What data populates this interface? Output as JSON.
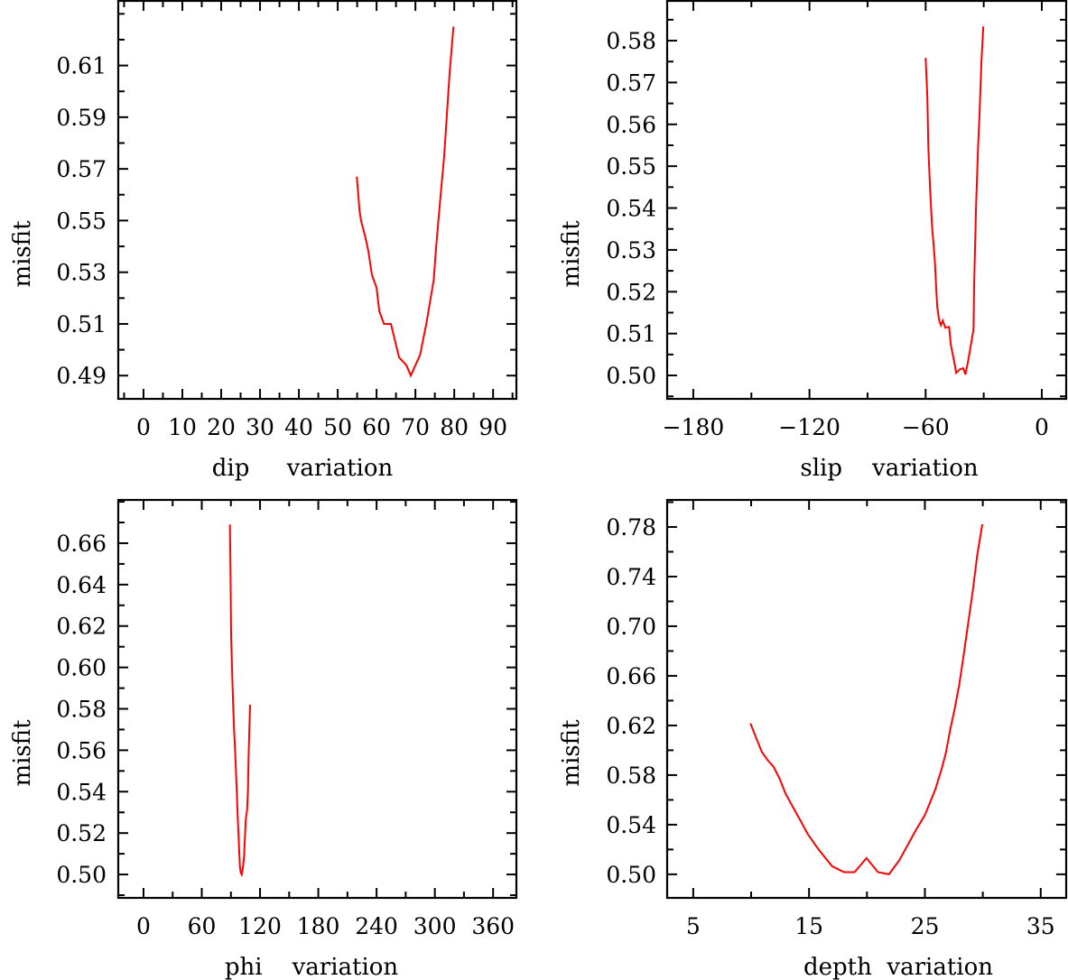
{
  "chart_data": [
    {
      "type": "line",
      "title": "",
      "xlabel": "dip     variation",
      "ylabel": "misfit",
      "xlim": [
        -6.5,
        96
      ],
      "ylim": [
        0.481,
        0.635
      ],
      "xticks": [
        0,
        10,
        20,
        30,
        40,
        50,
        60,
        70,
        80,
        90
      ],
      "xtick_labels": [
        "0",
        "10",
        "20",
        "30",
        "40",
        "50",
        "60",
        "70",
        "80",
        "90"
      ],
      "xminor_step": 5,
      "yticks": [
        0.49,
        0.51,
        0.53,
        0.55,
        0.57,
        0.59,
        0.61
      ],
      "ytick_labels": [
        "0.49",
        "0.51",
        "0.53",
        "0.55",
        "0.57",
        "0.59",
        "0.61"
      ],
      "yminor_step": 0.01,
      "grid": false,
      "series": [
        {
          "name": "misfit",
          "color": "#ff0000",
          "x": [
            54.9,
            55.6,
            56.0,
            57.2,
            57.9,
            58.8,
            60.0,
            60.7,
            61.9,
            63.7,
            65.8,
            67.7,
            68.8,
            70.0,
            71.2,
            72.8,
            74.7,
            75.3,
            76.5,
            77.4,
            78.1,
            78.8,
            79.8
          ],
          "y": [
            0.567,
            0.554,
            0.55,
            0.543,
            0.538,
            0.529,
            0.524,
            0.515,
            0.51,
            0.51,
            0.497,
            0.494,
            0.49,
            0.494,
            0.498,
            0.51,
            0.527,
            0.539,
            0.56,
            0.575,
            0.591,
            0.607,
            0.625
          ]
        }
      ]
    },
    {
      "type": "line",
      "title": "",
      "xlabel": "slip    variation",
      "ylabel": "misfit",
      "xlim": [
        -193.5,
        12.6
      ],
      "ylim": [
        0.4944,
        0.5895
      ],
      "xticks": [
        -180,
        -120,
        -60,
        0
      ],
      "xtick_labels": [
        "−180",
        "−120",
        "−60",
        "0"
      ],
      "xminor_step": 30,
      "yticks": [
        0.5,
        0.51,
        0.52,
        0.53,
        0.54,
        0.55,
        0.56,
        0.57,
        0.58
      ],
      "ytick_labels": [
        "0.50",
        "0.51",
        "0.52",
        "0.53",
        "0.54",
        "0.55",
        "0.56",
        "0.57",
        "0.58"
      ],
      "yminor_step": 0.005,
      "grid": false,
      "series": [
        {
          "name": "misfit",
          "color": "#ff0000",
          "x": [
            -60.0,
            -59.1,
            -58.6,
            -57.7,
            -56.7,
            -55.3,
            -54.4,
            -54.0,
            -53.0,
            -52.1,
            -51.2,
            -49.8,
            -47.9,
            -47.0,
            -45.6,
            -44.2,
            -42.3,
            -40.5,
            -39.5,
            -38.1,
            -36.7,
            -35.3,
            -34.9,
            -34.0,
            -33.0,
            -32.1,
            -31.2,
            -30.2
          ],
          "y": [
            0.5759,
            0.5665,
            0.5544,
            0.5447,
            0.5357,
            0.5277,
            0.5196,
            0.5163,
            0.5131,
            0.512,
            0.5131,
            0.5114,
            0.5116,
            0.5073,
            0.5041,
            0.5006,
            0.5015,
            0.5017,
            0.5002,
            0.5034,
            0.5071,
            0.511,
            0.5222,
            0.54,
            0.5535,
            0.563,
            0.575,
            0.5834
          ]
        }
      ]
    },
    {
      "type": "line",
      "title": "",
      "xlabel": "phi    variation",
      "ylabel": "misfit",
      "xlim": [
        -26,
        384
      ],
      "ylim": [
        0.4887,
        0.6809
      ],
      "xticks": [
        0,
        60,
        120,
        180,
        240,
        300,
        360
      ],
      "xtick_labels": [
        "0",
        "60",
        "120",
        "180",
        "240",
        "300",
        "360"
      ],
      "xminor_step": 30,
      "yticks": [
        0.5,
        0.52,
        0.54,
        0.56,
        0.58,
        0.6,
        0.62,
        0.64,
        0.66
      ],
      "ytick_labels": [
        "0.50",
        "0.52",
        "0.54",
        "0.56",
        "0.58",
        "0.60",
        "0.62",
        "0.64",
        "0.66"
      ],
      "yminor_step": 0.01,
      "grid": false,
      "series": [
        {
          "name": "misfit",
          "color": "#ff0000",
          "x": [
            89.0,
            89.6,
            90.2,
            91.5,
            92.4,
            93.3,
            94.6,
            95.8,
            96.7,
            97.7,
            98.6,
            99.2,
            100.1,
            101.1,
            102.3,
            103.6,
            104.5,
            105.4,
            106.7,
            107.6,
            108.2,
            109.1,
            109.8
          ],
          "y": [
            0.669,
            0.648,
            0.615,
            0.594,
            0.58,
            0.57,
            0.557,
            0.543,
            0.531,
            0.52,
            0.511,
            0.504,
            0.501,
            0.5,
            0.503,
            0.509,
            0.519,
            0.527,
            0.531,
            0.541,
            0.556,
            0.572,
            0.582
          ]
        }
      ]
    },
    {
      "type": "line",
      "title": "",
      "xlabel": "depth  variation",
      "ylabel": "misfit",
      "xlim": [
        2.75,
        37.2
      ],
      "ylim": [
        0.481,
        0.8018
      ],
      "xticks": [
        5,
        15,
        25,
        35
      ],
      "xtick_labels": [
        "5",
        "15",
        "25",
        "35"
      ],
      "xminor_step": 5,
      "yticks": [
        0.5,
        0.54,
        0.58,
        0.62,
        0.66,
        0.7,
        0.74,
        0.78
      ],
      "ytick_labels": [
        "0.50",
        "0.54",
        "0.58",
        "0.62",
        "0.66",
        "0.70",
        "0.74",
        "0.78"
      ],
      "yminor_step": 0.02,
      "grid": false,
      "series": [
        {
          "name": "misfit",
          "color": "#ff0000",
          "x": [
            9.94,
            10.45,
            10.92,
            11.43,
            11.95,
            12.47,
            12.98,
            13.63,
            14.28,
            14.92,
            15.83,
            16.99,
            18.02,
            18.93,
            19.96,
            20.95,
            21.9,
            22.8,
            23.58,
            24.22,
            25.0,
            25.9,
            26.42,
            26.8,
            27.19,
            27.58,
            27.97,
            28.36,
            28.74,
            29.13,
            29.52,
            29.96
          ],
          "y": [
            0.6217,
            0.6096,
            0.5987,
            0.5919,
            0.5865,
            0.5769,
            0.5647,
            0.5538,
            0.5429,
            0.532,
            0.5199,
            0.5065,
            0.5017,
            0.5017,
            0.5131,
            0.5017,
            0.5,
            0.5114,
            0.5247,
            0.5356,
            0.5478,
            0.5684,
            0.5841,
            0.5975,
            0.6169,
            0.6338,
            0.6532,
            0.6775,
            0.7029,
            0.7284,
            0.7575,
            0.7822
          ]
        }
      ]
    }
  ]
}
